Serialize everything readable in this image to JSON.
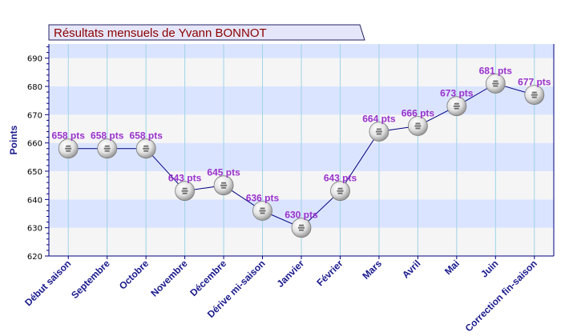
{
  "chart_data": {
    "type": "line",
    "title": "Résultats mensuels de  Yvann BONNOT",
    "ylabel": "Points",
    "ylim": [
      620,
      695
    ],
    "yticks": [
      620,
      630,
      640,
      650,
      660,
      670,
      680,
      690
    ],
    "categories": [
      "Début saison",
      "Septembre",
      "Octobre",
      "Novembre",
      "Décembre",
      "Dérive mi-saison",
      "Janvier",
      "Février",
      "Mars",
      "Avril",
      "Mai",
      "Juin",
      "Correction fin-saison"
    ],
    "series": [
      {
        "values": [
          658,
          658,
          658,
          643,
          645,
          636,
          630,
          643,
          664,
          666,
          673,
          681,
          677
        ],
        "labels": [
          "658 pts",
          "658 pts",
          "658 pts",
          "643 pts",
          "645 pts",
          "636 pts",
          "630 pts",
          "643 pts",
          "664 pts",
          "666 pts",
          "673 pts",
          "681 pts",
          "677 pts"
        ]
      }
    ],
    "grid": true,
    "colors": {
      "line": "#000080",
      "data_label": "#9932cc",
      "band_light": "#f5f5f5",
      "band_blue": "#dbe4ff",
      "vertical_grid": "#9ed3e6",
      "axis_text": "#1a1a8c",
      "title_text": "#8b0000",
      "title_box": "#e6e6fa"
    },
    "marker": "table-tennis-ball-icon"
  }
}
